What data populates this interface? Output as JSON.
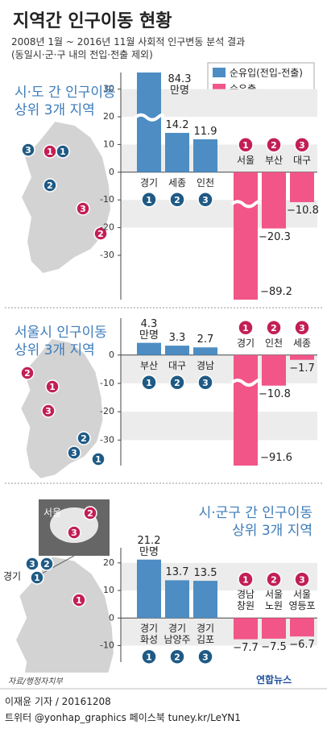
{
  "title": "지역간 인구이동 현황",
  "subtitle": [
    "2008년 1월 ~ 2016년 11월 사회적 인구변동 분석 결과",
    "(동일시·군·구 내의 전입·전출 제외)"
  ],
  "legend": [
    {
      "name": "순유입(전입-전출)",
      "color": "#4d8dc3"
    },
    {
      "name": "순유출",
      "color": "#f25587"
    }
  ],
  "chart_data": [
    {
      "type": "bar",
      "heading": [
        "시·도 간 인구이동",
        "상위 3개 지역"
      ],
      "categories": [
        "경기",
        "세종",
        "인천",
        "서울",
        "부산",
        "대구"
      ],
      "ranks": [
        1,
        2,
        3,
        1,
        2,
        3
      ],
      "values": [
        84.3,
        14.2,
        11.9,
        -89.2,
        -20.3,
        -10.8
      ],
      "value_labels": [
        "84.3 만명",
        "14.2",
        "11.9",
        "−89.2",
        "−20.3",
        "−10.8"
      ],
      "ylim": [
        -46,
        36
      ],
      "yticks": [
        30,
        20,
        10,
        0,
        -10,
        -20,
        -30
      ],
      "axis_break": true
    },
    {
      "type": "bar",
      "heading": [
        "서울시 인구이동",
        "상위 3개 지역"
      ],
      "categories": [
        "부산",
        "대구",
        "경남",
        "경기",
        "인천",
        "세종"
      ],
      "ranks": [
        1,
        2,
        3,
        1,
        2,
        3
      ],
      "values": [
        4.3,
        3.3,
        2.7,
        -91.6,
        -10.8,
        -1.7
      ],
      "value_labels": [
        "4.3 만명",
        "3.3",
        "2.7",
        "−91.6",
        "−10.8",
        "−1.7"
      ],
      "ylim": [
        -39,
        13
      ],
      "yticks": [
        0,
        -10,
        -20,
        -30
      ],
      "axis_break": true
    },
    {
      "type": "bar",
      "heading": [
        "시·군구 간 인구이동",
        "상위 3개 지역"
      ],
      "categories": [
        "경기 화성",
        "경기 남양주",
        "경기 김포",
        "경남 창원",
        "서울 노원",
        "서울 영등포"
      ],
      "ranks": [
        1,
        2,
        3,
        1,
        2,
        3
      ],
      "values": [
        21.2,
        13.7,
        13.5,
        -7.7,
        -7.5,
        -6.7
      ],
      "value_labels": [
        "21.2 만명",
        "13.7",
        "13.5",
        "−7.7",
        "−7.5",
        "−6.7"
      ],
      "ylim": [
        -16,
        25.5
      ],
      "yticks": [
        20,
        10,
        0,
        -10
      ],
      "map_labels": [
        "서울",
        "경기"
      ]
    }
  ],
  "source": "자료/행정자치부",
  "byline": "이재윤 기자 / 20161208",
  "social": "트위터 @yonhap_graphics 페이스북 tuney.kr/LeYN1",
  "logo": "연합뉴스"
}
